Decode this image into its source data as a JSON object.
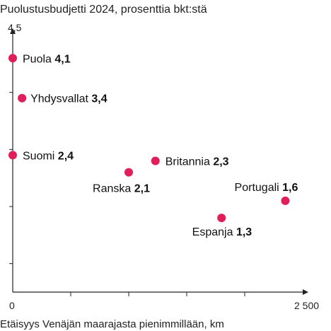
{
  "chart_data": {
    "type": "scatter",
    "title": "Puolustusbudjetti 2024, prosenttia bkt:stä",
    "xlabel": "Etäisyys Venäjän maarajasta pienimmillään, km",
    "ylabel": "",
    "xlim": [
      0,
      2500
    ],
    "ylim": [
      0,
      4.5
    ],
    "x_tick_labels": [
      "0",
      "2 500"
    ],
    "y_tick_labels": [
      "4,5"
    ],
    "grid": false,
    "point_color": "#e01e5a",
    "points": [
      {
        "name": "Puola",
        "value_label": "4,1",
        "x": 0,
        "y": 4.1
      },
      {
        "name": "Yhdysvallat",
        "value_label": "3,4",
        "x": 80,
        "y": 3.4
      },
      {
        "name": "Suomi",
        "value_label": "2,4",
        "x": 0,
        "y": 2.4
      },
      {
        "name": "Britannia",
        "value_label": "2,3",
        "x": 1230,
        "y": 2.3
      },
      {
        "name": "Ranska",
        "value_label": "2,1",
        "x": 1000,
        "y": 2.1
      },
      {
        "name": "Portugali",
        "value_label": "1,6",
        "x": 2350,
        "y": 1.6
      },
      {
        "name": "Espanja",
        "value_label": "1,3",
        "x": 1800,
        "y": 1.3
      }
    ]
  }
}
